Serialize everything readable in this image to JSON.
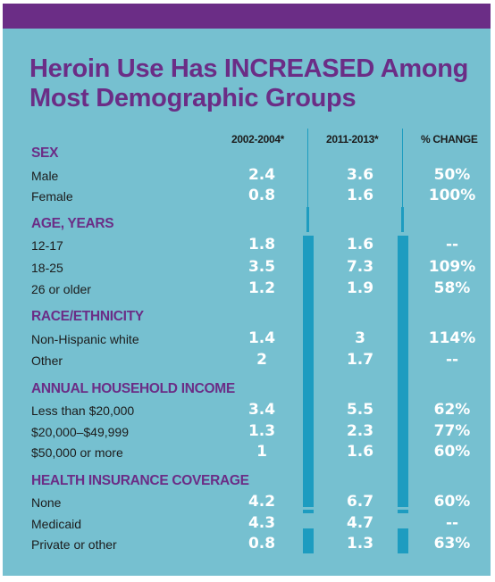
{
  "title": {
    "line1": "Heroin Use Has INCREASED Among",
    "line2": "Most Demographic Groups"
  },
  "columns": {
    "period1": "2002-2004*",
    "period2": "2011-2013*",
    "change": "% CHANGE"
  },
  "sections": [
    {
      "heading": "SEX",
      "rows": [
        {
          "label": "Male",
          "v1": "2.4",
          "v2": "3.6",
          "change": "50%"
        },
        {
          "label": "Female",
          "v1": "0.8",
          "v2": "1.6",
          "change": "100%"
        }
      ]
    },
    {
      "heading": "AGE, YEARS",
      "rows": [
        {
          "label": "12-17",
          "v1": "1.8",
          "v2": "1.6",
          "change": "--"
        },
        {
          "label": "18-25",
          "v1": "3.5",
          "v2": "7.3",
          "change": "109%"
        },
        {
          "label": "26 or older",
          "v1": "1.2",
          "v2": "1.9",
          "change": "58%"
        }
      ]
    },
    {
      "heading": "RACE/ETHNICITY",
      "rows": [
        {
          "label": "Non-Hispanic white",
          "v1": "1.4",
          "v2": "3",
          "change": "114%"
        },
        {
          "label": "Other",
          "v1": "2",
          "v2": "1.7",
          "change": "--"
        }
      ]
    },
    {
      "heading": "ANNUAL HOUSEHOLD INCOME",
      "rows": [
        {
          "label": "Less than $20,000",
          "v1": "3.4",
          "v2": "5.5",
          "change": "62%"
        },
        {
          "label": "$20,000–$49,999",
          "v1": "1.3",
          "v2": "2.3",
          "change": "77%"
        },
        {
          "label": "$50,000 or more",
          "v1": "1",
          "v2": "1.6",
          "change": "60%"
        }
      ]
    },
    {
      "heading": "HEALTH INSURANCE COVERAGE",
      "rows": [
        {
          "label": "None",
          "v1": "4.2",
          "v2": "6.7",
          "change": "60%"
        },
        {
          "label": "Medicaid",
          "v1": "4.3",
          "v2": "4.7",
          "change": "--"
        },
        {
          "label": "Private or other",
          "v1": "0.8",
          "v2": "1.3",
          "change": "63%"
        }
      ]
    }
  ],
  "colors": {
    "background": "#76c0d0",
    "accent_purple": "#6b2d86",
    "line_blue": "#1d9cc0",
    "value_white": "#ffffff"
  }
}
